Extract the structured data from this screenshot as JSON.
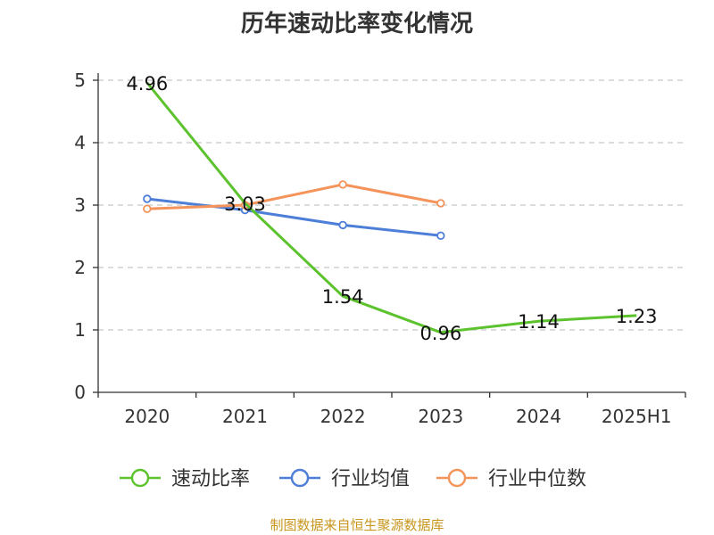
{
  "chart_data": {
    "type": "line",
    "title": "历年速动比率变化情况",
    "categories": [
      "2020",
      "2021",
      "2022",
      "2023",
      "2024",
      "2025H1"
    ],
    "y_ticks": [
      0,
      1,
      2,
      3,
      4,
      5
    ],
    "ylim": [
      0,
      5
    ],
    "grid": "horizontal dashed",
    "legend_position": "bottom",
    "series": [
      {
        "name": "速动比率",
        "color": "#5cc22d",
        "values": [
          4.96,
          3.03,
          1.54,
          0.96,
          1.14,
          1.23
        ],
        "data_labels": [
          "4.96",
          "3.03",
          "1.54",
          "0.96",
          "1.14",
          "1.23"
        ]
      },
      {
        "name": "行业均值",
        "color": "#4d7fd9",
        "values": [
          3.1,
          2.92,
          2.68,
          2.51,
          null,
          null
        ]
      },
      {
        "name": "行业中位数",
        "color": "#f4935a",
        "values": [
          2.94,
          3.0,
          3.33,
          3.03,
          null,
          null
        ]
      }
    ]
  },
  "source_note": "制图数据来自恒生聚源数据库"
}
